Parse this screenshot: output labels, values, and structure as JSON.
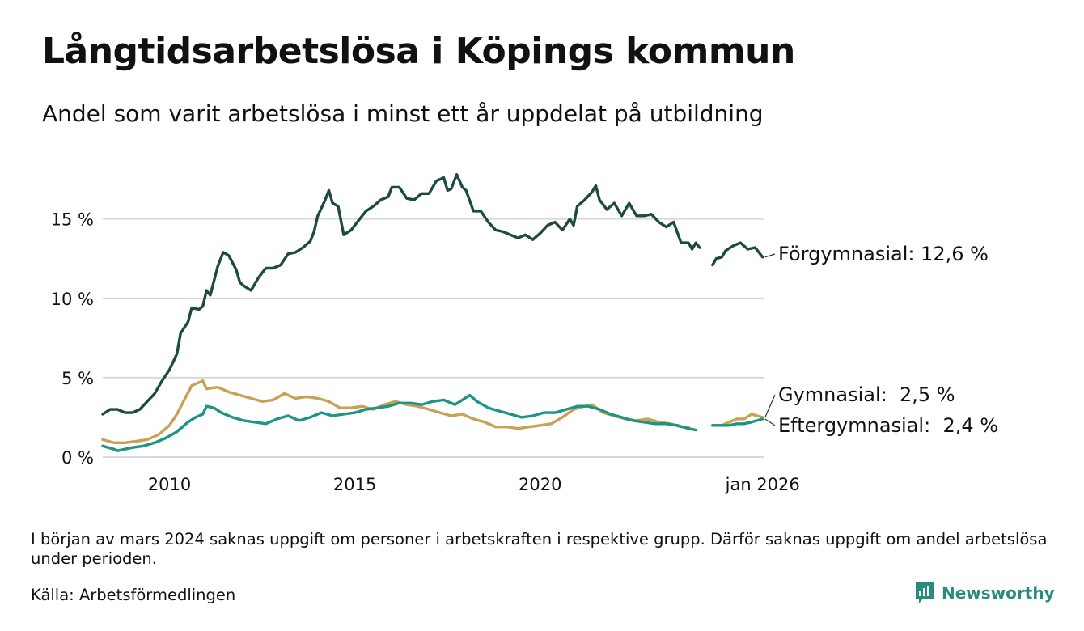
{
  "chart_data": {
    "type": "line",
    "title": "Långtidsarbetslösa i Köpings kommun",
    "subtitle": "Andel som varit arbetslösa i minst ett år uppdelat på utbildning",
    "xlabel": "",
    "ylabel": "",
    "xlim": [
      2008.2,
      2026.05
    ],
    "ylim": [
      0,
      18.5
    ],
    "y_ticks": [
      0,
      5,
      10,
      15
    ],
    "y_tick_labels": [
      "0 %",
      "5 %",
      "10 %",
      "15 %"
    ],
    "x_ticks": [
      2010,
      2015,
      2020,
      2026.0
    ],
    "x_tick_labels": [
      "2010",
      "2015",
      "2020",
      "jan 2026"
    ],
    "grid": true,
    "gap_note": "Data missing around early 2024",
    "series": [
      {
        "name": "Förgymnasial",
        "color": "#1d4a43",
        "end_label": "Förgymnasial: 12,6 %",
        "points": [
          [
            2008.2,
            2.7
          ],
          [
            2008.4,
            3.0
          ],
          [
            2008.6,
            3.0
          ],
          [
            2008.8,
            2.8
          ],
          [
            2009.0,
            2.8
          ],
          [
            2009.2,
            3.0
          ],
          [
            2009.4,
            3.5
          ],
          [
            2009.6,
            4.0
          ],
          [
            2009.8,
            4.8
          ],
          [
            2010.0,
            5.5
          ],
          [
            2010.2,
            6.5
          ],
          [
            2010.3,
            7.8
          ],
          [
            2010.5,
            8.5
          ],
          [
            2010.6,
            9.4
          ],
          [
            2010.8,
            9.3
          ],
          [
            2010.9,
            9.5
          ],
          [
            2011.0,
            10.5
          ],
          [
            2011.1,
            10.2
          ],
          [
            2011.3,
            12.0
          ],
          [
            2011.45,
            12.9
          ],
          [
            2011.6,
            12.7
          ],
          [
            2011.8,
            11.8
          ],
          [
            2011.9,
            11.0
          ],
          [
            2012.0,
            10.8
          ],
          [
            2012.2,
            10.5
          ],
          [
            2012.4,
            11.3
          ],
          [
            2012.6,
            11.9
          ],
          [
            2012.8,
            11.9
          ],
          [
            2013.0,
            12.1
          ],
          [
            2013.2,
            12.8
          ],
          [
            2013.4,
            12.9
          ],
          [
            2013.6,
            13.2
          ],
          [
            2013.8,
            13.6
          ],
          [
            2013.9,
            14.2
          ],
          [
            2014.0,
            15.2
          ],
          [
            2014.2,
            16.2
          ],
          [
            2014.3,
            16.8
          ],
          [
            2014.4,
            16.0
          ],
          [
            2014.55,
            15.8
          ],
          [
            2014.7,
            14.0
          ],
          [
            2014.9,
            14.3
          ],
          [
            2015.1,
            14.9
          ],
          [
            2015.3,
            15.5
          ],
          [
            2015.5,
            15.8
          ],
          [
            2015.7,
            16.2
          ],
          [
            2015.9,
            16.4
          ],
          [
            2016.0,
            17.0
          ],
          [
            2016.2,
            17.0
          ],
          [
            2016.4,
            16.3
          ],
          [
            2016.6,
            16.2
          ],
          [
            2016.8,
            16.6
          ],
          [
            2017.0,
            16.6
          ],
          [
            2017.2,
            17.4
          ],
          [
            2017.4,
            17.6
          ],
          [
            2017.5,
            16.8
          ],
          [
            2017.6,
            16.9
          ],
          [
            2017.75,
            17.8
          ],
          [
            2017.9,
            17.0
          ],
          [
            2018.0,
            16.8
          ],
          [
            2018.2,
            15.5
          ],
          [
            2018.4,
            15.5
          ],
          [
            2018.6,
            14.8
          ],
          [
            2018.8,
            14.3
          ],
          [
            2019.0,
            14.2
          ],
          [
            2019.2,
            14.0
          ],
          [
            2019.4,
            13.8
          ],
          [
            2019.6,
            14.0
          ],
          [
            2019.8,
            13.7
          ],
          [
            2020.0,
            14.1
          ],
          [
            2020.2,
            14.6
          ],
          [
            2020.4,
            14.8
          ],
          [
            2020.6,
            14.3
          ],
          [
            2020.8,
            15.0
          ],
          [
            2020.9,
            14.6
          ],
          [
            2021.0,
            15.8
          ],
          [
            2021.2,
            16.2
          ],
          [
            2021.4,
            16.7
          ],
          [
            2021.5,
            17.1
          ],
          [
            2021.6,
            16.2
          ],
          [
            2021.8,
            15.6
          ],
          [
            2022.0,
            16.0
          ],
          [
            2022.2,
            15.2
          ],
          [
            2022.4,
            16.0
          ],
          [
            2022.6,
            15.2
          ],
          [
            2022.8,
            15.2
          ],
          [
            2023.0,
            15.3
          ],
          [
            2023.2,
            14.8
          ],
          [
            2023.4,
            14.5
          ],
          [
            2023.6,
            14.8
          ],
          [
            2023.8,
            13.5
          ],
          [
            2024.0,
            13.5
          ],
          [
            2024.1,
            13.1
          ],
          [
            2024.2,
            13.5
          ],
          [
            2024.3,
            13.2
          ]
        ],
        "points_after_gap": [
          [
            2024.65,
            12.1
          ],
          [
            2024.75,
            12.5
          ],
          [
            2024.9,
            12.6
          ],
          [
            2025.0,
            13.0
          ],
          [
            2025.2,
            13.3
          ],
          [
            2025.4,
            13.5
          ],
          [
            2025.6,
            13.1
          ],
          [
            2025.8,
            13.2
          ],
          [
            2026.0,
            12.6
          ]
        ]
      },
      {
        "name": "Gymnasial",
        "color": "#c9a054",
        "end_label": "Gymnasial:  2,5 %",
        "points": [
          [
            2008.2,
            1.1
          ],
          [
            2008.5,
            0.9
          ],
          [
            2008.8,
            0.9
          ],
          [
            2009.1,
            1.0
          ],
          [
            2009.4,
            1.1
          ],
          [
            2009.7,
            1.4
          ],
          [
            2010.0,
            2.0
          ],
          [
            2010.2,
            2.7
          ],
          [
            2010.4,
            3.6
          ],
          [
            2010.6,
            4.5
          ],
          [
            2010.8,
            4.7
          ],
          [
            2010.9,
            4.8
          ],
          [
            2011.0,
            4.3
          ],
          [
            2011.3,
            4.4
          ],
          [
            2011.6,
            4.1
          ],
          [
            2011.9,
            3.9
          ],
          [
            2012.2,
            3.7
          ],
          [
            2012.5,
            3.5
          ],
          [
            2012.8,
            3.6
          ],
          [
            2013.1,
            4.0
          ],
          [
            2013.4,
            3.7
          ],
          [
            2013.7,
            3.8
          ],
          [
            2014.0,
            3.7
          ],
          [
            2014.3,
            3.5
          ],
          [
            2014.6,
            3.1
          ],
          [
            2014.9,
            3.1
          ],
          [
            2015.2,
            3.2
          ],
          [
            2015.5,
            3.0
          ],
          [
            2015.8,
            3.3
          ],
          [
            2016.1,
            3.5
          ],
          [
            2016.4,
            3.3
          ],
          [
            2016.7,
            3.2
          ],
          [
            2017.0,
            3.0
          ],
          [
            2017.3,
            2.8
          ],
          [
            2017.6,
            2.6
          ],
          [
            2017.9,
            2.7
          ],
          [
            2018.2,
            2.4
          ],
          [
            2018.5,
            2.2
          ],
          [
            2018.8,
            1.9
          ],
          [
            2019.1,
            1.9
          ],
          [
            2019.4,
            1.8
          ],
          [
            2019.7,
            1.9
          ],
          [
            2020.0,
            2.0
          ],
          [
            2020.3,
            2.1
          ],
          [
            2020.6,
            2.5
          ],
          [
            2020.9,
            3.0
          ],
          [
            2021.2,
            3.2
          ],
          [
            2021.4,
            3.3
          ],
          [
            2021.7,
            2.8
          ],
          [
            2022.0,
            2.6
          ],
          [
            2022.3,
            2.4
          ],
          [
            2022.6,
            2.3
          ],
          [
            2022.9,
            2.4
          ],
          [
            2023.2,
            2.2
          ],
          [
            2023.5,
            2.1
          ],
          [
            2023.8,
            1.9
          ],
          [
            2024.0,
            1.9
          ]
        ],
        "points_after_gap": [
          [
            2024.65,
            2.0
          ],
          [
            2024.9,
            2.0
          ],
          [
            2025.1,
            2.2
          ],
          [
            2025.3,
            2.4
          ],
          [
            2025.5,
            2.4
          ],
          [
            2025.7,
            2.7
          ],
          [
            2026.0,
            2.5
          ]
        ]
      },
      {
        "name": "Eftergymnasial",
        "color": "#1d9484",
        "end_label": "Eftergymnasial:  2,4 %",
        "points": [
          [
            2008.2,
            0.7
          ],
          [
            2008.5,
            0.5
          ],
          [
            2008.6,
            0.4
          ],
          [
            2008.8,
            0.5
          ],
          [
            2009.0,
            0.6
          ],
          [
            2009.3,
            0.7
          ],
          [
            2009.6,
            0.9
          ],
          [
            2009.9,
            1.2
          ],
          [
            2010.2,
            1.6
          ],
          [
            2010.5,
            2.2
          ],
          [
            2010.7,
            2.5
          ],
          [
            2010.9,
            2.7
          ],
          [
            2011.0,
            3.2
          ],
          [
            2011.2,
            3.1
          ],
          [
            2011.4,
            2.8
          ],
          [
            2011.7,
            2.5
          ],
          [
            2012.0,
            2.3
          ],
          [
            2012.3,
            2.2
          ],
          [
            2012.6,
            2.1
          ],
          [
            2012.9,
            2.4
          ],
          [
            2013.2,
            2.6
          ],
          [
            2013.5,
            2.3
          ],
          [
            2013.8,
            2.5
          ],
          [
            2014.1,
            2.8
          ],
          [
            2014.4,
            2.6
          ],
          [
            2014.7,
            2.7
          ],
          [
            2015.0,
            2.8
          ],
          [
            2015.3,
            3.0
          ],
          [
            2015.6,
            3.1
          ],
          [
            2015.9,
            3.2
          ],
          [
            2016.2,
            3.4
          ],
          [
            2016.5,
            3.4
          ],
          [
            2016.8,
            3.3
          ],
          [
            2017.1,
            3.5
          ],
          [
            2017.4,
            3.6
          ],
          [
            2017.7,
            3.3
          ],
          [
            2017.9,
            3.6
          ],
          [
            2018.1,
            3.9
          ],
          [
            2018.3,
            3.5
          ],
          [
            2018.6,
            3.1
          ],
          [
            2018.9,
            2.9
          ],
          [
            2019.2,
            2.7
          ],
          [
            2019.5,
            2.5
          ],
          [
            2019.8,
            2.6
          ],
          [
            2020.1,
            2.8
          ],
          [
            2020.4,
            2.8
          ],
          [
            2020.7,
            3.0
          ],
          [
            2021.0,
            3.2
          ],
          [
            2021.3,
            3.2
          ],
          [
            2021.6,
            3.0
          ],
          [
            2021.9,
            2.7
          ],
          [
            2022.2,
            2.5
          ],
          [
            2022.5,
            2.3
          ],
          [
            2022.8,
            2.2
          ],
          [
            2023.1,
            2.1
          ],
          [
            2023.4,
            2.1
          ],
          [
            2023.7,
            2.0
          ],
          [
            2024.0,
            1.8
          ],
          [
            2024.2,
            1.7
          ]
        ],
        "points_after_gap": [
          [
            2024.65,
            2.0
          ],
          [
            2024.9,
            2.0
          ],
          [
            2025.1,
            2.0
          ],
          [
            2025.3,
            2.1
          ],
          [
            2025.5,
            2.1
          ],
          [
            2025.7,
            2.2
          ],
          [
            2026.0,
            2.4
          ]
        ]
      }
    ]
  },
  "footer": {
    "note": "I början av mars 2024 saknas uppgift om personer i arbetskraften i respektive grupp. Därför saknas uppgift om andel arbetslösa under perioden.",
    "source": "Källa: Arbetsförmedlingen",
    "brand": "Newsworthy",
    "brand_color": "#2a8a80"
  }
}
